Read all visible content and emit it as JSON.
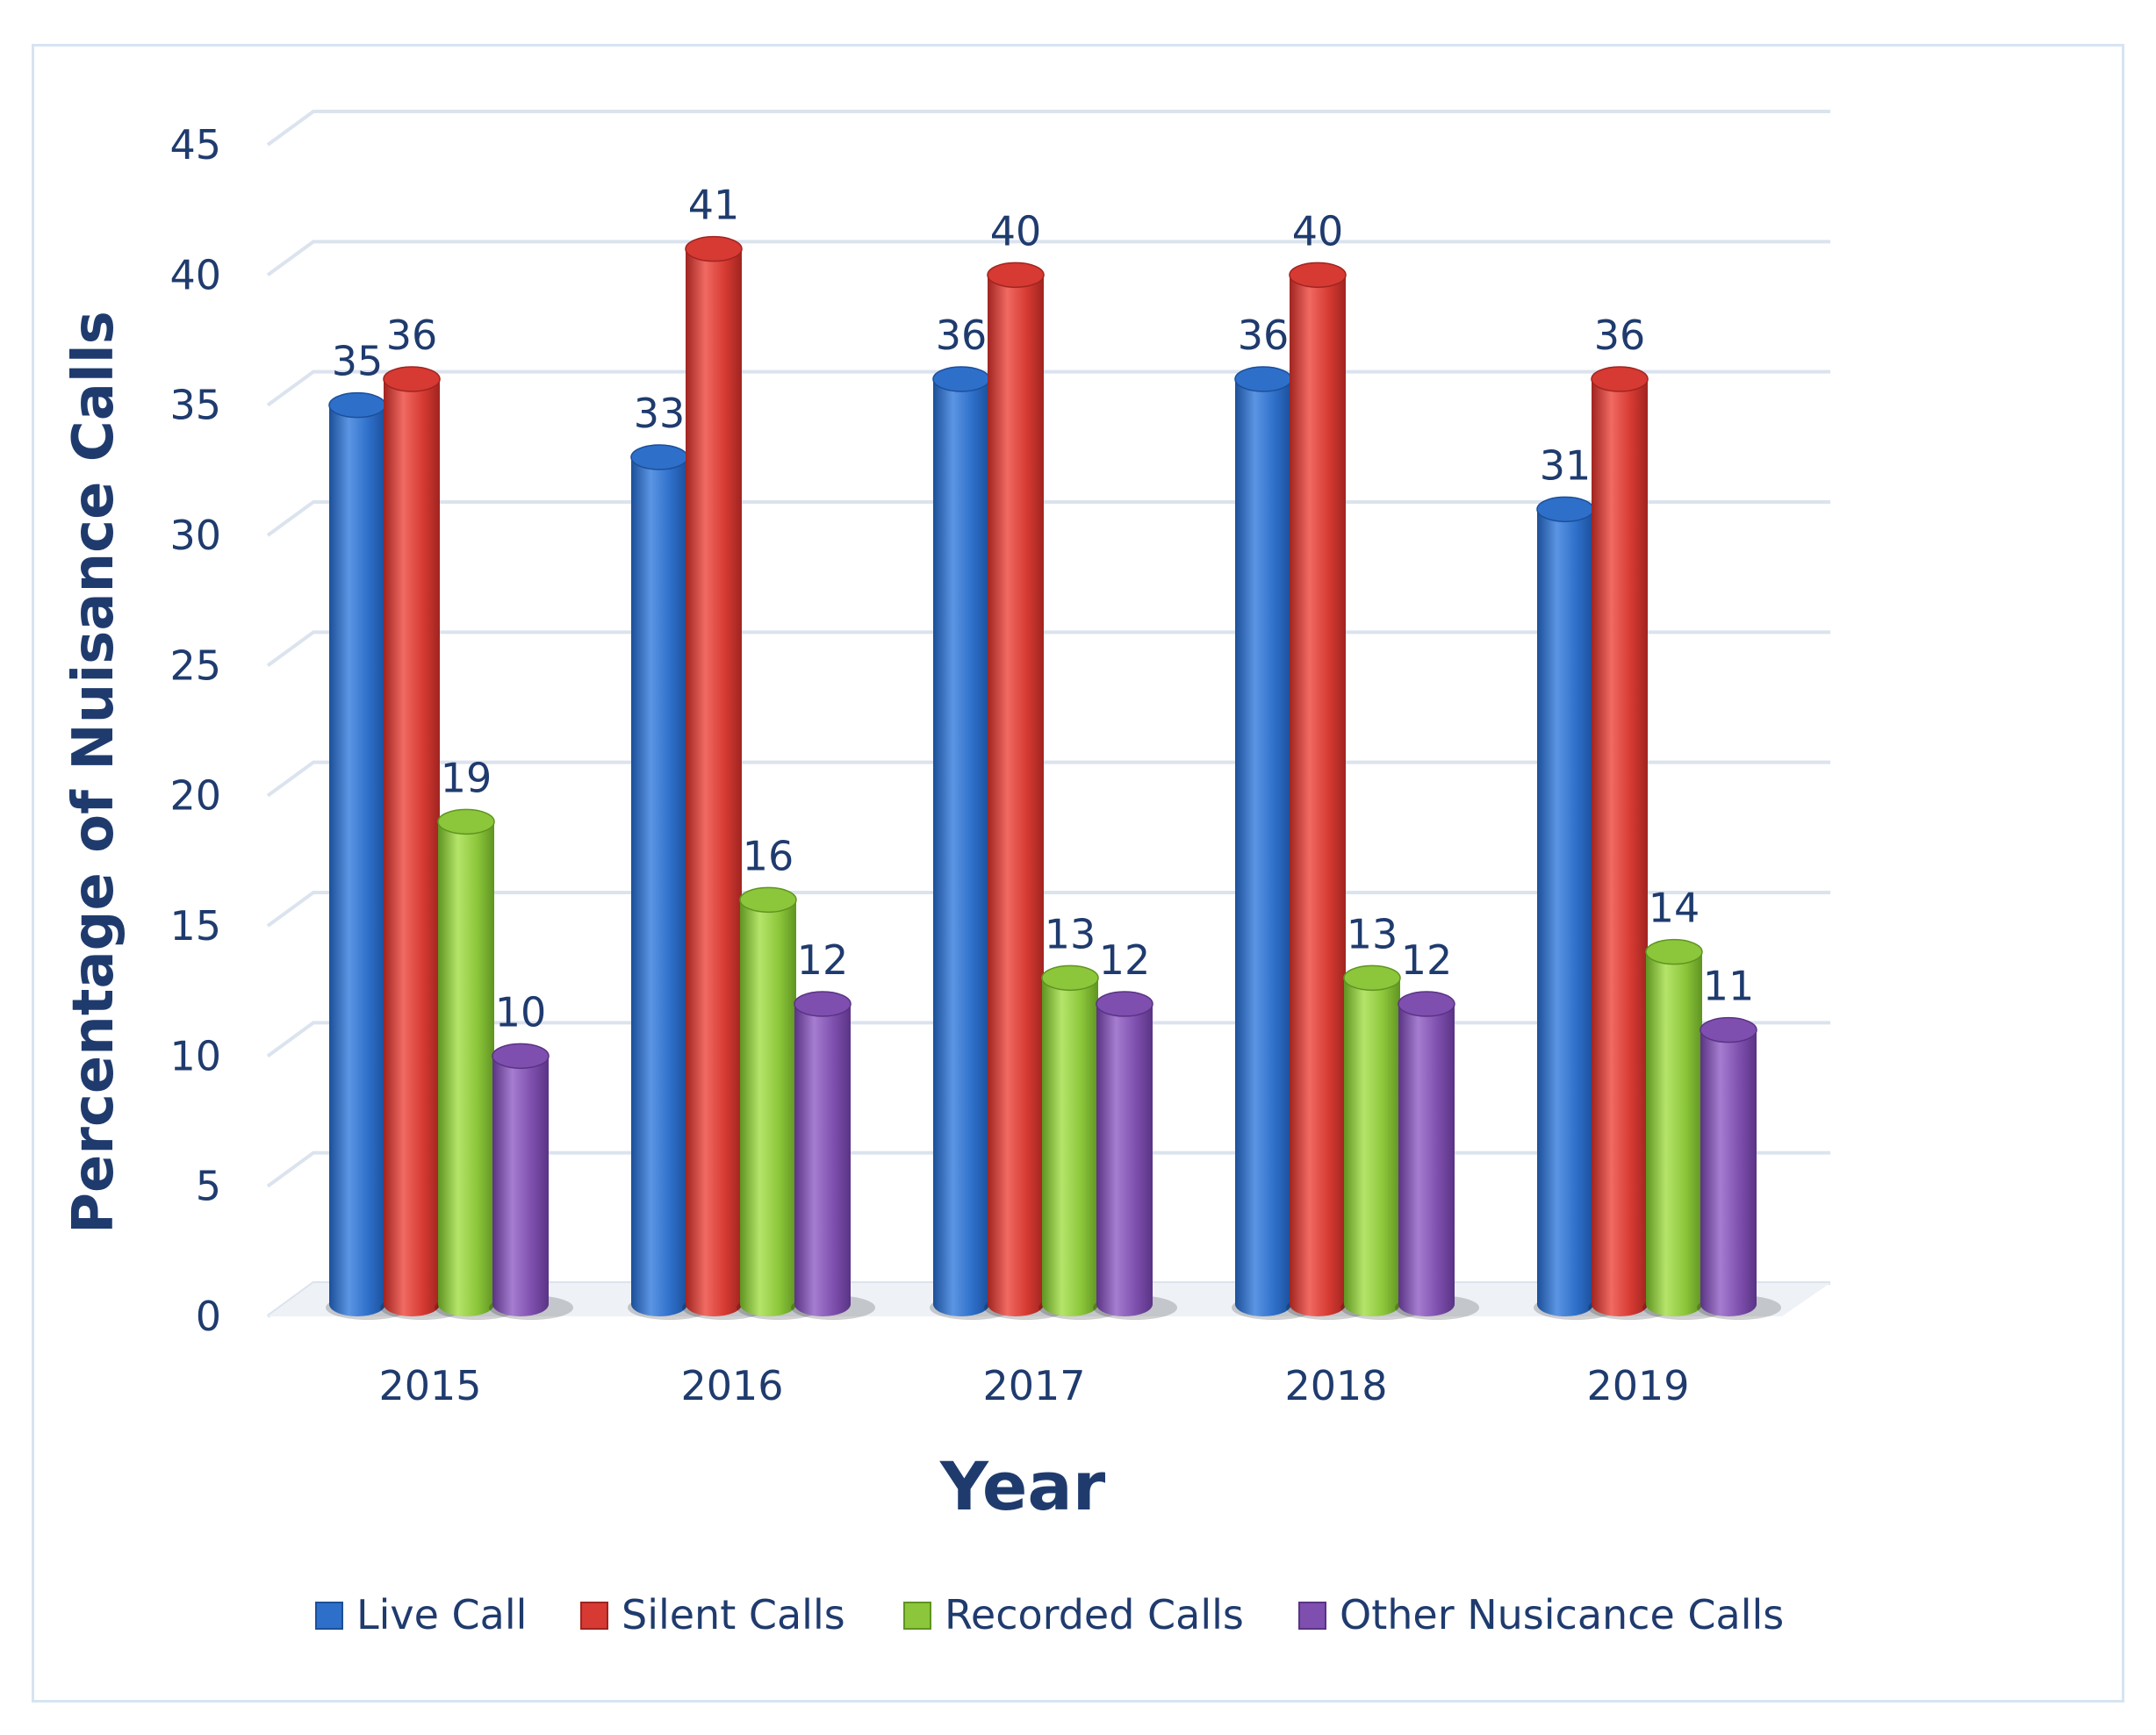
{
  "chart_data": {
    "type": "bar",
    "title": "",
    "xlabel": "Year",
    "ylabel": "Percentage of Nuisance Calls",
    "ylim": [
      0,
      45
    ],
    "yticks": [
      "0",
      "5",
      "10",
      "15",
      "20",
      "25",
      "30",
      "35",
      "40",
      "45"
    ],
    "ytick_values": [
      0,
      5,
      10,
      15,
      20,
      25,
      30,
      35,
      40,
      45
    ],
    "categories": [
      "2015",
      "2016",
      "2017",
      "2018",
      "2019"
    ],
    "grid": true,
    "legend_position": "bottom",
    "series": [
      {
        "name": "Live Call",
        "color": "#2e6fca",
        "dark": "#1c4f99",
        "light": "#5b95e3",
        "values": [
          35,
          33,
          36,
          36,
          31
        ],
        "labels": [
          "35",
          "33",
          "36",
          "36",
          "31"
        ]
      },
      {
        "name": "Silent Calls",
        "color": "#d63a32",
        "dark": "#a02420",
        "light": "#f06a62",
        "values": [
          36,
          41,
          40,
          40,
          36
        ],
        "labels": [
          "36",
          "41",
          "40",
          "40",
          "36"
        ]
      },
      {
        "name": "Recorded Calls",
        "color": "#8cc63a",
        "dark": "#5f9421",
        "light": "#b5e46a",
        "values": [
          19,
          16,
          13,
          13,
          14
        ],
        "labels": [
          "19",
          "16",
          "13",
          "13",
          "14"
        ]
      },
      {
        "name": "Other Nusicance Calls",
        "color": "#7e4fae",
        "dark": "#5a3384",
        "light": "#a57dd0",
        "values": [
          10,
          12,
          12,
          12,
          11
        ],
        "labels": [
          "10",
          "12",
          "12",
          "12",
          "11"
        ]
      }
    ]
  }
}
